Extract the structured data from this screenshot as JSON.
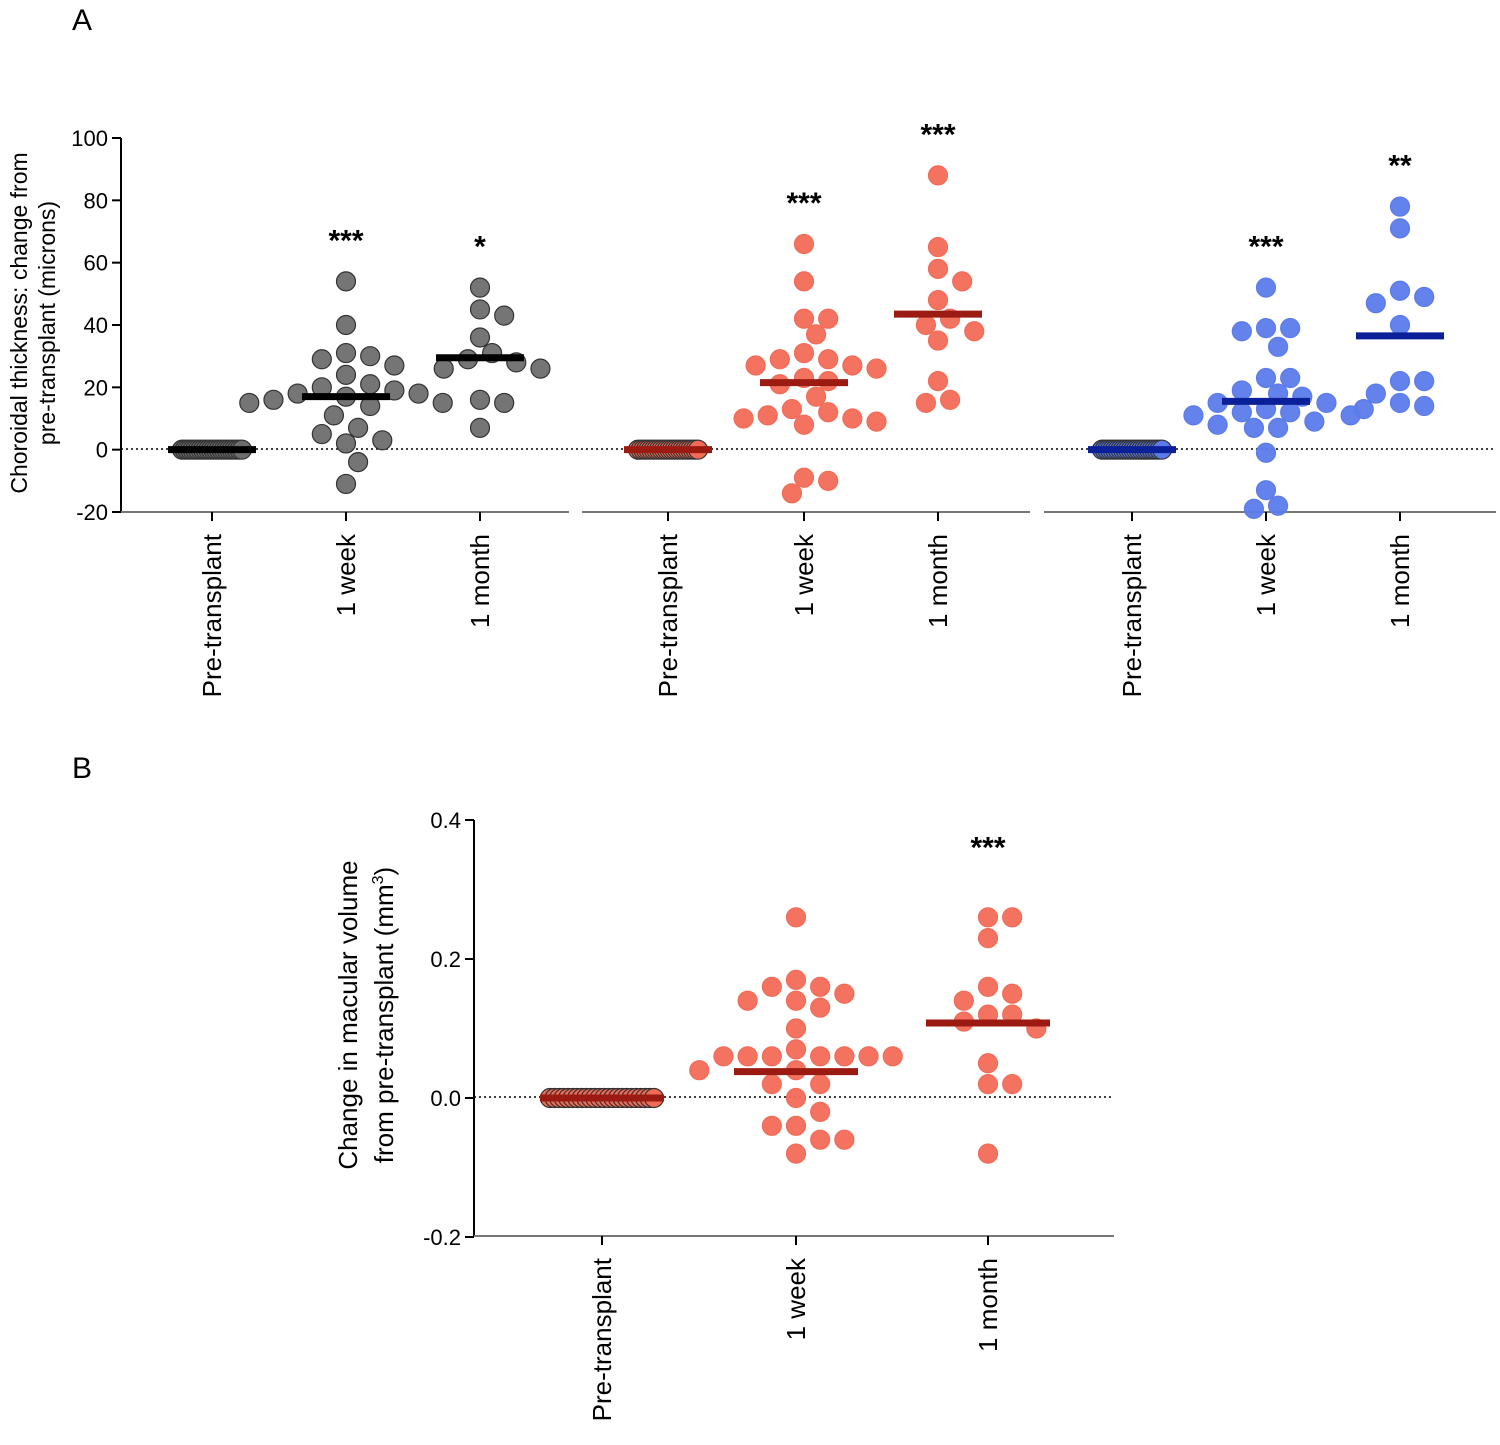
{
  "panels": [
    {
      "letter": "A",
      "ylabel_line1": "Choroidal thickness: change from",
      "ylabel_line2": "pre-transplant (microns)",
      "ylim": [
        -20,
        100
      ],
      "yticks": [
        "-20",
        "0",
        "20",
        "40",
        "60",
        "80",
        "100"
      ],
      "ytick_values": [
        -20,
        0,
        20,
        40,
        60,
        80,
        100
      ],
      "chart_data": {
        "type": "scatter",
        "ylim": [
          -20,
          100
        ],
        "reference_line": 0,
        "groups": [
          {
            "color": "#6e6e6e",
            "median_color": "#000000",
            "categories": [
              "Pre-transplant",
              "1 week",
              "1 month"
            ],
            "significance": [
              "",
              "***",
              "*"
            ],
            "medians": [
              0,
              17,
              29.5
            ],
            "values": [
              [
                0,
                0,
                0,
                0,
                0,
                0,
                0,
                0,
                0,
                0,
                0,
                0,
                0,
                0,
                0,
                0,
                0,
                0,
                0,
                0,
                0,
                0,
                0,
                0
              ],
              [
                54,
                40,
                31,
                30,
                29,
                27,
                24,
                21,
                20,
                19,
                18,
                18,
                17,
                16,
                15,
                15,
                14,
                11,
                7,
                5,
                3,
                2,
                -4,
                -11
              ],
              [
                52,
                45,
                43,
                36,
                31,
                29,
                28,
                26,
                26,
                16,
                15,
                7
              ]
            ]
          },
          {
            "color": "#f26b57",
            "median_color": "#9b1b12",
            "categories": [
              "Pre-transplant",
              "1 week",
              "1 month"
            ],
            "significance": [
              "",
              "***",
              "***"
            ],
            "medians": [
              0,
              21.5,
              43.5
            ],
            "values": [
              [
                0,
                0,
                0,
                0,
                0,
                0,
                0,
                0,
                0,
                0,
                0,
                0,
                0,
                0,
                0,
                0,
                0,
                0,
                0,
                0,
                0,
                0,
                0,
                0
              ],
              [
                66,
                54,
                42,
                42,
                37,
                31,
                29,
                29,
                27,
                27,
                26,
                23,
                22,
                21,
                17,
                13,
                12,
                11,
                10,
                10,
                9,
                8,
                -9,
                -10,
                -14
              ],
              [
                88,
                65,
                58,
                54,
                48,
                42,
                40,
                38,
                35,
                22,
                16,
                15
              ]
            ]
          },
          {
            "color": "#5b7bea",
            "median_color": "#0b1f99",
            "categories": [
              "Pre-transplant",
              "1 week",
              "1 month"
            ],
            "significance": [
              "",
              "***",
              "**"
            ],
            "medians": [
              0,
              15.5,
              36.5
            ],
            "values": [
              [
                0,
                0,
                0,
                0,
                0,
                0,
                0,
                0,
                0,
                0,
                0,
                0,
                0,
                0,
                0,
                0,
                0,
                0,
                0,
                0,
                0,
                0,
                0,
                0
              ],
              [
                52,
                39,
                39,
                38,
                33,
                23,
                23,
                19,
                18,
                17,
                15,
                15,
                13,
                12,
                12,
                11,
                11,
                9,
                8,
                7,
                7,
                -1,
                -13,
                -18,
                -19
              ],
              [
                78,
                71,
                51,
                49,
                47,
                40,
                22,
                22,
                18,
                15,
                14,
                13
              ]
            ]
          }
        ]
      }
    },
    {
      "letter": "B",
      "ylabel_line1": "Change in macular volume",
      "ylabel_line2": "from pre-transplant (mm",
      "ylabel_sup": "3",
      "ylabel_close": ")",
      "ylim": [
        -0.2,
        0.4
      ],
      "yticks": [
        "-0.2",
        "0.0",
        "0.2",
        "0.4"
      ],
      "ytick_values": [
        -0.2,
        0.0,
        0.2,
        0.4
      ],
      "chart_data": {
        "type": "scatter",
        "ylim": [
          -0.2,
          0.4
        ],
        "reference_line": 0,
        "groups": [
          {
            "color": "#f26b57",
            "median_color": "#9b1b12",
            "categories": [
              "Pre-transplant",
              "1 week",
              "1 month"
            ],
            "significance": [
              "",
              "",
              "***"
            ],
            "medians": [
              0,
              0.038,
              0.108
            ],
            "values": [
              [
                0,
                0,
                0,
                0,
                0,
                0,
                0,
                0,
                0,
                0,
                0,
                0,
                0,
                0,
                0,
                0,
                0,
                0,
                0,
                0,
                0,
                0,
                0,
                0
              ],
              [
                0.26,
                0.17,
                0.16,
                0.16,
                0.15,
                0.14,
                0.14,
                0.13,
                0.1,
                0.07,
                0.06,
                0.06,
                0.06,
                0.06,
                0.06,
                0.06,
                0.06,
                0.04,
                0.04,
                0.02,
                0.02,
                0.0,
                -0.02,
                -0.04,
                -0.04,
                -0.06,
                -0.06,
                -0.08
              ],
              [
                0.26,
                0.26,
                0.23,
                0.16,
                0.15,
                0.14,
                0.12,
                0.12,
                0.11,
                0.1,
                0.05,
                0.02,
                0.02,
                -0.08
              ]
            ]
          }
        ]
      }
    }
  ]
}
